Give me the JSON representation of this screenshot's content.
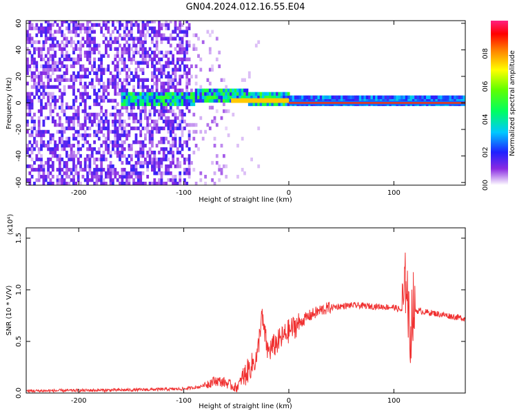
{
  "title": "GN04.2024.012.16.55.E04",
  "chart_data": [
    {
      "type": "heatmap",
      "xlabel": "Height of straight line (km)",
      "ylabel": "Frequency (Hz)",
      "xlim": [
        -250,
        168
      ],
      "ylim": [
        -62,
        62
      ],
      "xticks": [
        -200,
        -100,
        0,
        100
      ],
      "xtick_labels": [
        "-200",
        "-100",
        "0",
        "100"
      ],
      "yticks": [
        -60,
        -40,
        -20,
        0,
        20,
        40,
        60
      ],
      "ytick_labels": [
        "-60",
        "-40",
        "-20",
        "0",
        "20",
        "40",
        "60"
      ],
      "colorbar": {
        "label": "Normalized spectral amplitude",
        "range": [
          0,
          1
        ],
        "ticks": [
          0.0,
          0.2,
          0.4,
          0.6,
          0.8
        ],
        "tick_labels": [
          "0.0",
          "0.2",
          "0.4",
          "0.6",
          "0.8"
        ],
        "colormap": "rainbow"
      },
      "regions": [
        {
          "x_range": [
            -250,
            -95
          ],
          "freq_range": [
            -62,
            62
          ],
          "amplitude": 0.12,
          "description": "broadband noise"
        },
        {
          "x_range": [
            -95,
            -60
          ],
          "freq_range": [
            -62,
            62
          ],
          "amplitude": 0.05,
          "description": "sparse noise"
        },
        {
          "x_range": [
            -160,
            0
          ],
          "freq_center": 2,
          "freq_width": 6,
          "amplitude": 0.5
        },
        {
          "x_range": [
            0,
            168
          ],
          "freq_center": 0,
          "freq_width": 3,
          "amplitude": 0.9
        }
      ]
    },
    {
      "type": "line",
      "xlabel": "Height of straight line (km)",
      "ylabel": "SNR (10 * V/V)",
      "y_multiplier_label": "(x10⁴)",
      "xlim": [
        -250,
        168
      ],
      "ylim": [
        0,
        1.6
      ],
      "xticks": [
        -200,
        -100,
        0,
        100
      ],
      "xtick_labels": [
        "-200",
        "-100",
        "0",
        "100"
      ],
      "yticks": [
        0.0,
        0.5,
        1.0,
        1.5
      ],
      "ytick_labels": [
        "0.0",
        "0.5",
        "1.0",
        "1.5"
      ],
      "series": [
        {
          "color": "#f03030",
          "x": [
            -250,
            -150,
            -100,
            -85,
            -70,
            -60,
            -50,
            -40,
            -30,
            -26,
            -20,
            -10,
            0,
            10,
            20,
            30,
            40,
            60,
            80,
            100,
            108,
            110,
            112,
            115,
            118,
            120,
            140,
            168
          ],
          "y": [
            0.02,
            0.03,
            0.04,
            0.06,
            0.12,
            0.1,
            0.05,
            0.2,
            0.35,
            0.75,
            0.4,
            0.5,
            0.6,
            0.68,
            0.75,
            0.8,
            0.83,
            0.85,
            0.84,
            0.83,
            0.8,
            0.9,
            1.2,
            0.5,
            0.85,
            0.8,
            0.77,
            0.72
          ]
        }
      ]
    }
  ]
}
